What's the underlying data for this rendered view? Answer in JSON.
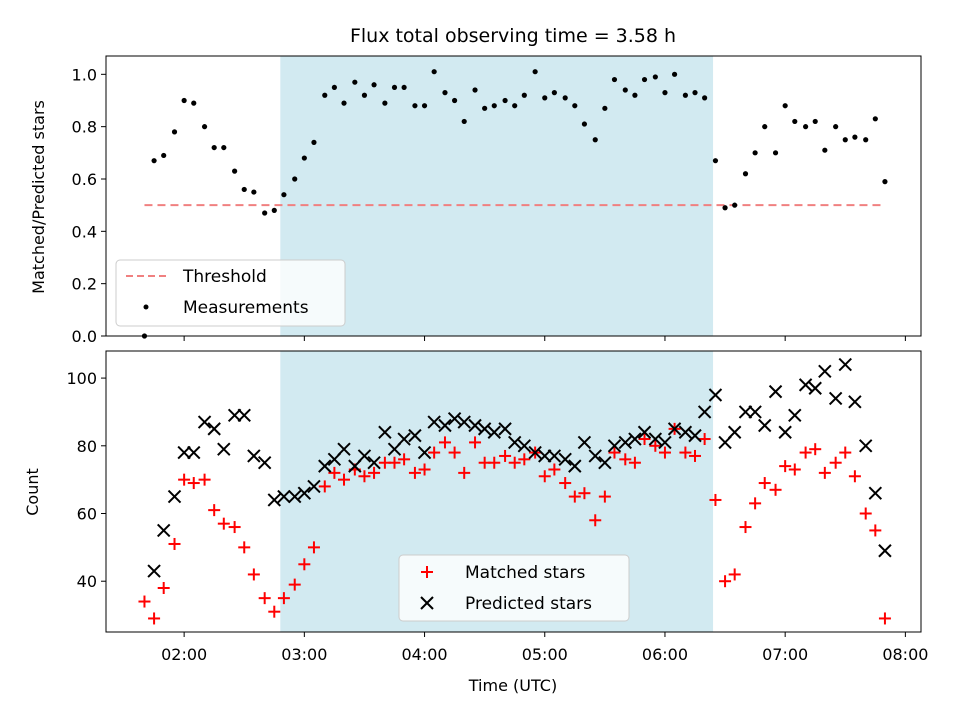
{
  "chart_data": [
    {
      "type": "scatter",
      "title": "Flux total observing time = 3.58 h",
      "xlabel": "",
      "ylabel": "Matched/Predicted stars",
      "xlim_hours": [
        1.35,
        8.13
      ],
      "ylim": [
        0,
        1.07
      ],
      "yticks": [
        0.0,
        0.2,
        0.4,
        0.6,
        0.8,
        1.0
      ],
      "ytick_labels": [
        "0.0",
        "0.2",
        "0.4",
        "0.6",
        "0.8",
        "1.0"
      ],
      "xticks_hours": [
        2,
        3,
        4,
        5,
        6,
        7,
        8
      ],
      "shaded_region_hours": [
        2.8,
        6.4
      ],
      "shaded_color": "#add8e6",
      "legend_placement": "lower left",
      "series": [
        {
          "name": "Threshold",
          "style": "dashed-line",
          "color": "#f08080",
          "x": [
            1.67,
            7.83
          ],
          "y": [
            0.5,
            0.5
          ]
        },
        {
          "name": "Measurements",
          "style": "dot",
          "color": "#000000",
          "x": [
            1.67,
            1.75,
            1.83,
            1.92,
            2.0,
            2.08,
            2.17,
            2.25,
            2.33,
            2.42,
            2.5,
            2.58,
            2.67,
            2.75,
            2.83,
            2.92,
            3.0,
            3.08,
            3.17,
            3.25,
            3.33,
            3.42,
            3.5,
            3.58,
            3.67,
            3.75,
            3.83,
            3.92,
            4.0,
            4.08,
            4.17,
            4.25,
            4.33,
            4.42,
            4.5,
            4.58,
            4.67,
            4.75,
            4.83,
            4.92,
            5.0,
            5.08,
            5.17,
            5.25,
            5.33,
            5.42,
            5.5,
            5.58,
            5.67,
            5.75,
            5.83,
            5.92,
            6.0,
            6.08,
            6.17,
            6.25,
            6.33,
            6.42,
            6.5,
            6.58,
            6.67,
            6.75,
            6.83,
            6.92,
            7.0,
            7.08,
            7.17,
            7.25,
            7.33,
            7.42,
            7.5,
            7.58,
            7.67,
            7.75,
            7.83
          ],
          "y": [
            0.0,
            0.67,
            0.69,
            0.78,
            0.9,
            0.89,
            0.8,
            0.72,
            0.72,
            0.63,
            0.56,
            0.55,
            0.47,
            0.48,
            0.54,
            0.6,
            0.68,
            0.74,
            0.92,
            0.95,
            0.89,
            0.97,
            0.92,
            0.96,
            0.89,
            0.95,
            0.95,
            0.88,
            0.88,
            1.01,
            0.93,
            0.9,
            0.82,
            0.94,
            0.87,
            0.88,
            0.9,
            0.88,
            0.92,
            1.01,
            0.91,
            0.93,
            0.91,
            0.88,
            0.81,
            0.75,
            0.87,
            0.98,
            0.94,
            0.92,
            0.98,
            0.99,
            0.93,
            1.0,
            0.92,
            0.93,
            0.91,
            0.67,
            0.49,
            0.5,
            0.62,
            0.7,
            0.8,
            0.7,
            0.88,
            0.82,
            0.8,
            0.82,
            0.71,
            0.8,
            0.75,
            0.76,
            0.75,
            0.83,
            0.59
          ]
        }
      ]
    },
    {
      "type": "scatter",
      "title": "",
      "xlabel": "Time (UTC)",
      "ylabel": "Count",
      "xlim_hours": [
        1.35,
        8.13
      ],
      "ylim": [
        25,
        108
      ],
      "yticks": [
        40,
        60,
        80,
        100
      ],
      "ytick_labels": [
        "40",
        "60",
        "80",
        "100"
      ],
      "xticks_hours": [
        2,
        3,
        4,
        5,
        6,
        7,
        8
      ],
      "xtick_labels": [
        "02:00",
        "03:00",
        "04:00",
        "05:00",
        "06:00",
        "07:00",
        "08:00"
      ],
      "shaded_region_hours": [
        2.8,
        6.4
      ],
      "shaded_color": "#add8e6",
      "legend_placement": "lower center",
      "series": [
        {
          "name": "Matched stars",
          "marker": "+",
          "color": "#ff0000",
          "x": [
            1.67,
            1.75,
            1.83,
            1.92,
            2.0,
            2.08,
            2.17,
            2.25,
            2.33,
            2.42,
            2.5,
            2.58,
            2.67,
            2.75,
            2.83,
            2.92,
            3.0,
            3.08,
            3.17,
            3.25,
            3.33,
            3.42,
            3.5,
            3.58,
            3.67,
            3.75,
            3.83,
            3.92,
            4.0,
            4.08,
            4.17,
            4.25,
            4.33,
            4.42,
            4.5,
            4.58,
            4.67,
            4.75,
            4.83,
            4.92,
            5.0,
            5.08,
            5.17,
            5.25,
            5.33,
            5.42,
            5.5,
            5.58,
            5.67,
            5.75,
            5.83,
            5.92,
            6.0,
            6.08,
            6.17,
            6.25,
            6.33,
            6.42,
            6.5,
            6.58,
            6.67,
            6.75,
            6.83,
            6.92,
            7.0,
            7.08,
            7.17,
            7.25,
            7.33,
            7.42,
            7.5,
            7.58,
            7.67,
            7.75,
            7.83
          ],
          "y": [
            34,
            29,
            38,
            51,
            70,
            69,
            70,
            61,
            57,
            56,
            50,
            42,
            35,
            31,
            35,
            39,
            45,
            50,
            68,
            72,
            70,
            73,
            71,
            72,
            75,
            75,
            76,
            72,
            73,
            78,
            81,
            78,
            72,
            81,
            75,
            75,
            77,
            75,
            76,
            78,
            71,
            73,
            69,
            65,
            66,
            58,
            65,
            78,
            76,
            75,
            82,
            80,
            78,
            85,
            78,
            77,
            82,
            64,
            40,
            42,
            56,
            63,
            69,
            67,
            74,
            73,
            78,
            79,
            72,
            75,
            78,
            71,
            60,
            55,
            29
          ]
        },
        {
          "name": "Predicted stars",
          "marker": "x",
          "color": "#000000",
          "x": [
            1.75,
            1.83,
            1.92,
            2.0,
            2.08,
            2.17,
            2.25,
            2.33,
            2.42,
            2.5,
            2.58,
            2.67,
            2.75,
            2.83,
            2.92,
            3.0,
            3.08,
            3.17,
            3.25,
            3.33,
            3.42,
            3.5,
            3.58,
            3.67,
            3.75,
            3.83,
            3.92,
            4.0,
            4.08,
            4.17,
            4.25,
            4.33,
            4.42,
            4.5,
            4.58,
            4.67,
            4.75,
            4.83,
            4.92,
            5.0,
            5.08,
            5.17,
            5.25,
            5.33,
            5.42,
            5.5,
            5.58,
            5.67,
            5.75,
            5.83,
            5.92,
            6.0,
            6.08,
            6.17,
            6.25,
            6.33,
            6.42,
            6.5,
            6.58,
            6.67,
            6.75,
            6.83,
            6.92,
            7.0,
            7.08,
            7.17,
            7.25,
            7.33,
            7.42,
            7.5,
            7.58,
            7.67,
            7.75,
            7.83
          ],
          "y": [
            43,
            55,
            65,
            78,
            78,
            87,
            85,
            79,
            89,
            89,
            77,
            75,
            64,
            65,
            65,
            66,
            68,
            74,
            76,
            79,
            74,
            77,
            75,
            84,
            79,
            82,
            83,
            78,
            87,
            86,
            88,
            87,
            86,
            85,
            84,
            85,
            81,
            80,
            78,
            77,
            77,
            76,
            74,
            81,
            77,
            75,
            80,
            81,
            82,
            84,
            82,
            81,
            85,
            84,
            83,
            90,
            95,
            81,
            84,
            90,
            90,
            86,
            96,
            84,
            89,
            98,
            97,
            102,
            94,
            104,
            93,
            80,
            66,
            49
          ]
        }
      ]
    }
  ]
}
